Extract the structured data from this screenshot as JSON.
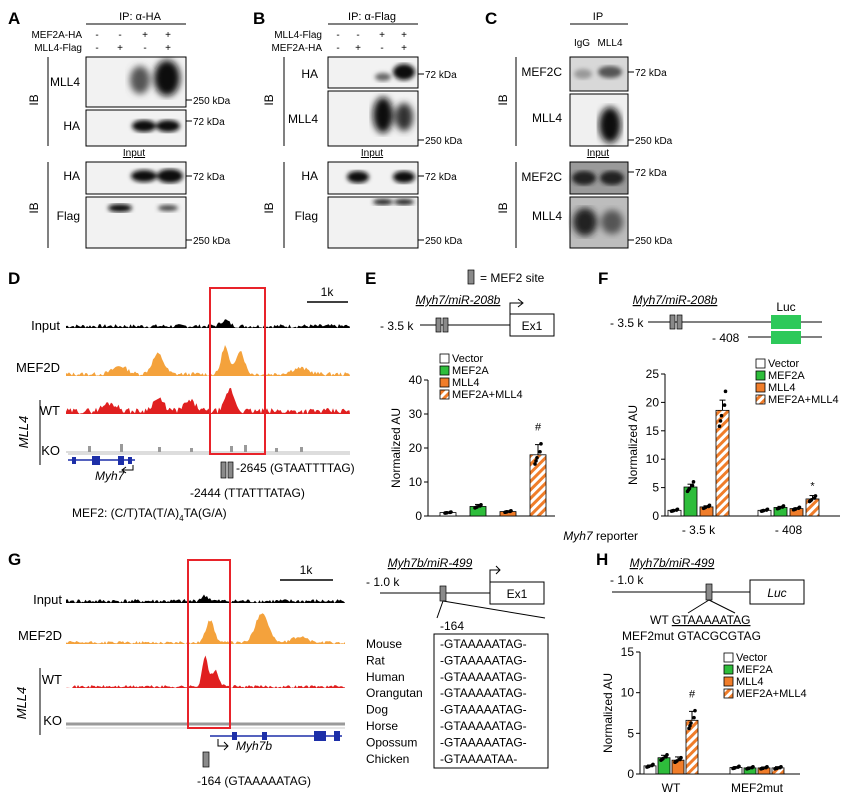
{
  "panels": {
    "A": {
      "letter": "A",
      "ip_title": "IP: α-HA",
      "row_labels": [
        "MEF2A-HA",
        "MLL4-Flag"
      ],
      "row1_signs": [
        "-",
        "-",
        "+",
        "+"
      ],
      "row2_signs": [
        "-",
        "+",
        "-",
        "+"
      ],
      "ib": "IB",
      "blot_labels": [
        "MLL4",
        "HA",
        "HA",
        "Flag"
      ],
      "input": "Input",
      "markers": [
        "250 kDa",
        "72 kDa",
        "72 kDa",
        "250 kDa"
      ]
    },
    "B": {
      "letter": "B",
      "ip_title": "IP: α-Flag",
      "row_labels": [
        "MLL4-Flag",
        "MEF2A-HA"
      ],
      "row1_signs": [
        "-",
        "-",
        "+",
        "+"
      ],
      "row2_signs": [
        "-",
        "+",
        "-",
        "+"
      ],
      "ib": "IB",
      "blot_labels": [
        "HA",
        "MLL4",
        "HA",
        "Flag"
      ],
      "input": "Input",
      "markers": [
        "72 kDa",
        "250 kDa",
        "72 kDa",
        "250 kDa"
      ]
    },
    "C": {
      "letter": "C",
      "ip_title": "IP",
      "lanes": [
        "IgG",
        "MLL4"
      ],
      "ib": "IB",
      "blot_labels": [
        "MEF2C",
        "MLL4",
        "MEF2C",
        "MLL4"
      ],
      "input": "Input",
      "markers": [
        "72 kDa",
        "250 kDa",
        "72 kDa",
        "250 kDa"
      ]
    },
    "D": {
      "letter": "D",
      "scale": "1k",
      "tracks": [
        "Input",
        "MEF2D",
        "WT",
        "KO"
      ],
      "group": "MLL4",
      "gene": "Myh7",
      "site1": "-2645 (GTAATTTTAG)",
      "site2": "-2444 (TTATTTATAG)",
      "motif_a": "MEF2: (C/T)TA(T/A)",
      "motif_sub": "4",
      "motif_b": "TA(G/A)"
    },
    "E": {
      "letter": "E",
      "legend_site": "= MEF2 site",
      "construct": "Myh7/miR-208b",
      "pos": "- 3.5 k",
      "exon": "Ex1",
      "hash": "#"
    },
    "F": {
      "letter": "F",
      "construct": "Myh7/miR-208b",
      "pos1": "- 3.5 k",
      "pos2": "- 408",
      "luc": "Luc",
      "reporter": "Myh7",
      "reporter_rest": " reporter",
      "star": "*"
    },
    "G": {
      "letter": "G",
      "scale": "1k",
      "tracks": [
        "Input",
        "MEF2D",
        "WT",
        "KO"
      ],
      "group": "MLL4",
      "gene": "Myh7b",
      "site": "-164 (GTAAAAATAG)",
      "construct": "Myh7b/miR-499",
      "pos": "- 1.0 k",
      "exon": "Ex1",
      "box_pos": "-164",
      "species": [
        "Mouse",
        "Rat",
        "Human",
        "Orangutan",
        "Dog",
        "Horse",
        "Opossum",
        "Chicken"
      ],
      "sequences": [
        "-GTAAAAATAG-",
        "-GTAAAAATAG-",
        "-GTAAAAATAG-",
        "-GTAAAAATAG-",
        "-GTAAAAATAG-",
        "-GTAAAAATAG-",
        "-GTAAAAATAG-",
        "-GTAAAATAA-"
      ]
    },
    "H": {
      "letter": "H",
      "construct": "Myh7b/miR-499",
      "pos": "- 1.0 k",
      "luc": "Luc",
      "wt_label": "WT ",
      "wt_seq": "GTAAAAATAG",
      "mut_label": "MEF2mut GTACGCGTAG",
      "hash": "#"
    }
  },
  "colors": {
    "vector": "#ffffff",
    "mef2a": "#2ebd3b",
    "mll4": "#f07d2a",
    "combo_stripe": "#f07d2a",
    "mef2d_track": "#f4a23c",
    "wt_track": "#e02020",
    "ko_track": "#9a9a9a",
    "red_box": "#e8232a",
    "luc_box": "#2ec95a",
    "gene_blue": "#1d2fa8"
  },
  "chart_data": [
    {
      "panel": "E",
      "type": "bar",
      "ylabel": "Normalized AU",
      "ylim": [
        0,
        40
      ],
      "yticks": [
        0,
        10,
        20,
        30,
        40
      ],
      "series": [
        {
          "name": "Vector",
          "values": [
            1.0
          ]
        },
        {
          "name": "MEF2A",
          "values": [
            2.8
          ]
        },
        {
          "name": "MLL4",
          "values": [
            1.3
          ]
        },
        {
          "name": "MEF2A+MLL4",
          "values": [
            18.0
          ]
        }
      ],
      "errors": [
        0.15,
        0.6,
        0.2,
        3.0
      ],
      "annotation": "#"
    },
    {
      "panel": "F",
      "type": "bar",
      "ylabel": "Normalized AU",
      "ylim": [
        0,
        25
      ],
      "yticks": [
        0,
        5,
        10,
        15,
        20,
        25
      ],
      "categories": [
        "- 3.5 k",
        "- 408"
      ],
      "series": [
        {
          "name": "Vector",
          "values": [
            1.0,
            1.0
          ]
        },
        {
          "name": "MEF2A",
          "values": [
            5.1,
            1.5
          ]
        },
        {
          "name": "MLL4",
          "values": [
            1.6,
            1.3
          ]
        },
        {
          "name": "MEF2A+MLL4",
          "values": [
            18.6,
            3.0
          ]
        }
      ],
      "errors": [
        [
          0.1,
          0.5,
          0.2,
          1.8
        ],
        [
          0.1,
          0.2,
          0.15,
          0.6
        ]
      ],
      "annotations": [
        "",
        "*"
      ]
    },
    {
      "panel": "H",
      "type": "bar",
      "ylabel": "Normalized AU",
      "ylim": [
        0,
        15
      ],
      "yticks": [
        0,
        5,
        10,
        15
      ],
      "categories": [
        "WT",
        "MEF2mut"
      ],
      "series": [
        {
          "name": "Vector",
          "values": [
            1.0,
            0.8
          ]
        },
        {
          "name": "MEF2A",
          "values": [
            2.0,
            0.75
          ]
        },
        {
          "name": "MLL4",
          "values": [
            1.7,
            0.75
          ]
        },
        {
          "name": "MEF2A+MLL4",
          "values": [
            6.6,
            0.75
          ]
        }
      ],
      "errors": [
        [
          0.1,
          0.3,
          0.4,
          1.1
        ],
        [
          0.1,
          0.1,
          0.1,
          0.15
        ]
      ],
      "annotations": [
        "#",
        ""
      ]
    }
  ]
}
